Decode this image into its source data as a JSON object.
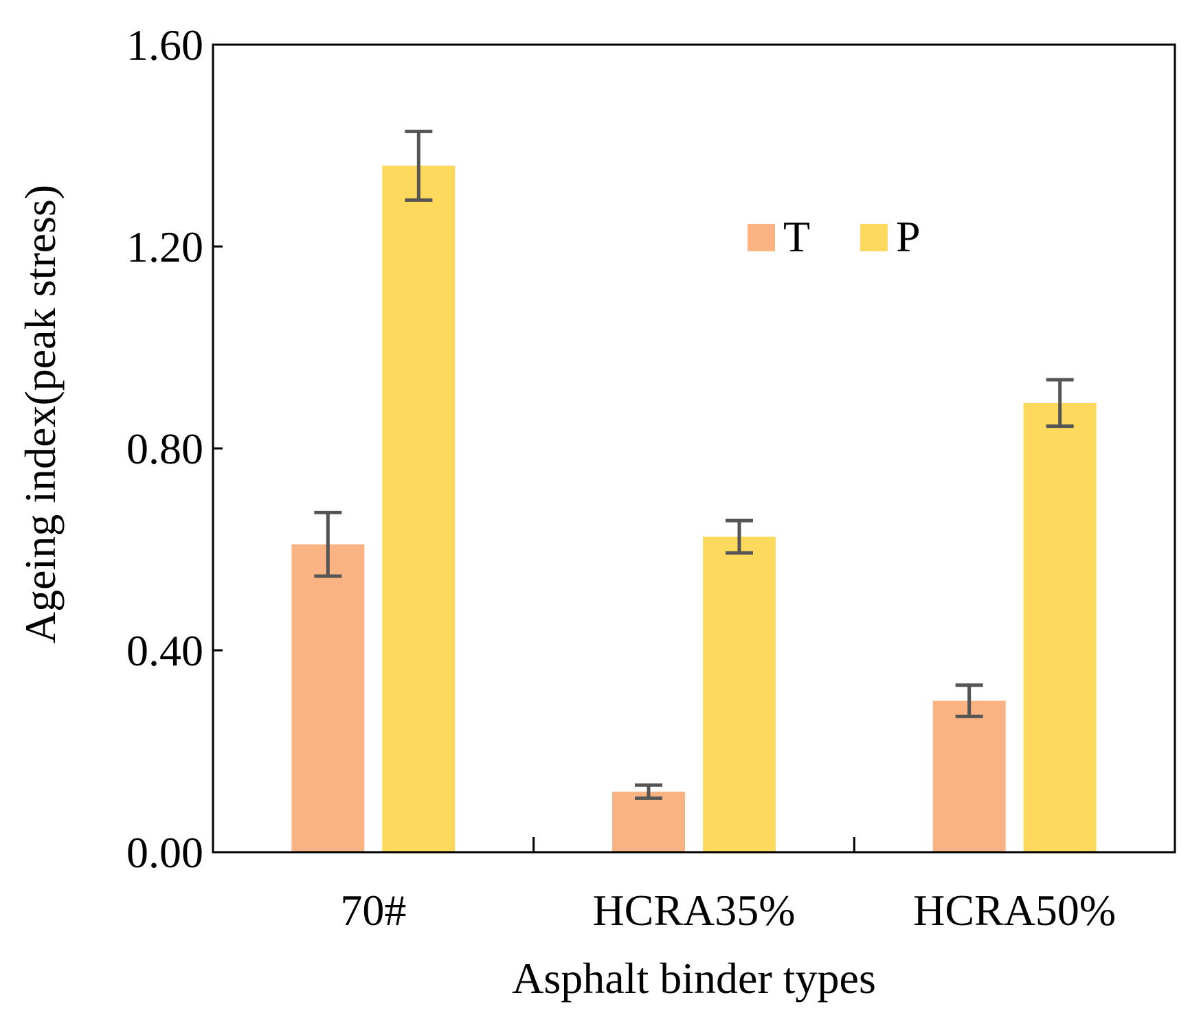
{
  "chart_data": {
    "type": "bar",
    "title": "",
    "xlabel": "Asphalt binder types",
    "ylabel": "Ageing index(peak stress)",
    "categories": [
      "70#",
      "HCRA35%",
      "HCRA50%"
    ],
    "series": [
      {
        "name": "T",
        "color": "#FBB383",
        "values": [
          0.61,
          0.12,
          0.3
        ],
        "errors": [
          0.063,
          0.013,
          0.031
        ]
      },
      {
        "name": "P",
        "color": "#FDD95E",
        "values": [
          1.36,
          0.625,
          0.89
        ],
        "errors": [
          0.068,
          0.032,
          0.046
        ]
      }
    ],
    "ylim": [
      0,
      1.6
    ],
    "yticks": [
      0,
      0.4,
      0.8,
      1.2,
      1.6
    ],
    "ytick_labels": [
      "0.00",
      "0.40",
      "0.80",
      "1.20",
      "1.60"
    ],
    "grid": false,
    "legend_position": "top-center, inside plot, horizontal",
    "error_bar_color": "#555555"
  }
}
